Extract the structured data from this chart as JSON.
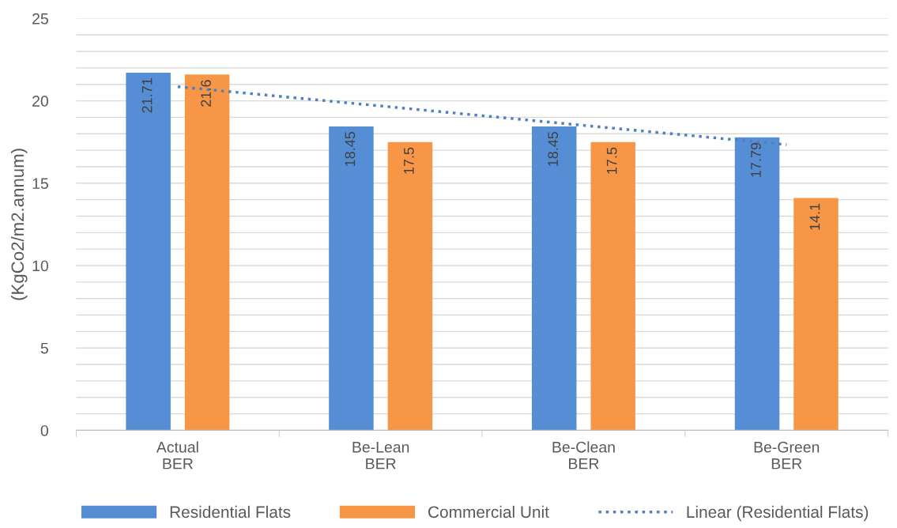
{
  "chart_data": {
    "type": "bar",
    "ylabel": "(KgCo2/m2.annum)",
    "categories": [
      "Actual\nBER",
      "Be-Lean\nBER",
      "Be-Clean\nBER",
      "Be-Green\nBER"
    ],
    "series": [
      {
        "name": "Residential Flats",
        "color": "#558ed5",
        "values": [
          21.71,
          18.45,
          18.45,
          17.79
        ],
        "value_labels": [
          "21.71",
          "18.45",
          "18.45",
          "17.79"
        ]
      },
      {
        "name": "Commercial Unit",
        "color": "#f79646",
        "values": [
          21.6,
          17.5,
          17.5,
          14.1
        ],
        "value_labels": [
          "21.6",
          "17.5",
          "17.5",
          "14.1"
        ]
      },
      {
        "name": "Linear (Residential Flats)",
        "type": "line",
        "color": "#4f81bd",
        "line_style": "dotted",
        "values": [
          20.86,
          19.69,
          18.51,
          17.34
        ]
      }
    ],
    "ylim": [
      0,
      25
    ],
    "yticks": [
      0,
      {
        "value": 1,
        "label": null
      },
      {
        "value": 2,
        "label": null
      },
      {
        "value": 3,
        "label": null
      },
      {
        "value": 4,
        "label": null
      },
      5,
      {
        "value": 6,
        "label": null
      },
      {
        "value": 7,
        "label": null
      },
      {
        "value": 8,
        "label": null
      },
      {
        "value": 9,
        "label": null
      },
      10,
      {
        "value": 11,
        "label": null
      },
      {
        "value": 12,
        "label": null
      },
      {
        "value": 13,
        "label": null
      },
      {
        "value": 14,
        "label": null
      },
      15,
      {
        "value": 16,
        "label": null
      },
      {
        "value": 17,
        "label": null
      },
      {
        "value": 18,
        "label": null
      },
      {
        "value": 19,
        "label": null
      },
      20,
      {
        "value": 21,
        "label": null
      },
      {
        "value": 22,
        "label": null
      },
      {
        "value": 23,
        "label": null
      },
      {
        "value": 24,
        "label": null
      },
      25
    ],
    "grid": "y",
    "legend": "bottom"
  }
}
